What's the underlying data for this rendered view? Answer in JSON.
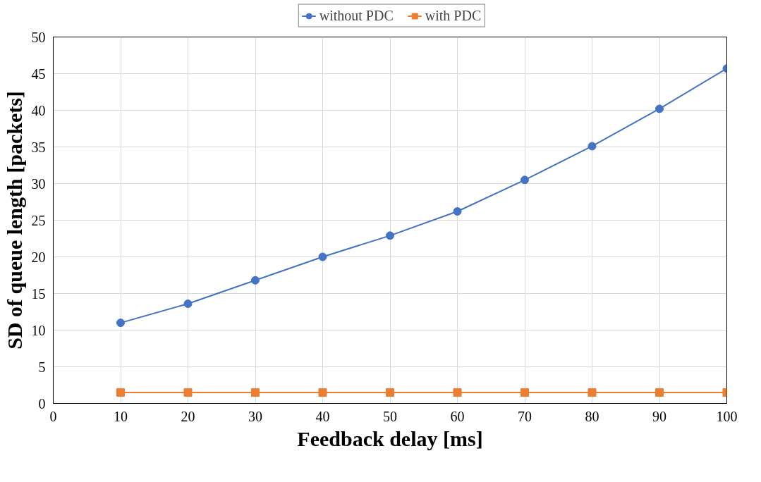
{
  "chart_data": {
    "type": "line",
    "xlabel": "Feedback delay [ms]",
    "ylabel": "SD of queue length [packets]",
    "x": [
      10,
      20,
      30,
      40,
      50,
      60,
      70,
      80,
      90,
      100
    ],
    "series": [
      {
        "name": "without PDC",
        "color": "#4472c4",
        "marker": "circle",
        "values": [
          11.0,
          13.6,
          16.8,
          20.0,
          22.9,
          26.2,
          30.5,
          35.1,
          40.2,
          45.7
        ]
      },
      {
        "name": "with PDC",
        "color": "#ed7d31",
        "marker": "square",
        "values": [
          1.5,
          1.5,
          1.5,
          1.5,
          1.5,
          1.5,
          1.5,
          1.5,
          1.5,
          1.5
        ]
      }
    ],
    "xlim": [
      0,
      100
    ],
    "xticks": [
      0,
      10,
      20,
      30,
      40,
      50,
      60,
      70,
      80,
      90,
      100
    ],
    "ylim": [
      0,
      50
    ],
    "yticks": [
      0,
      5,
      10,
      15,
      20,
      25,
      30,
      35,
      40,
      45,
      50
    ],
    "grid": true,
    "legend": "top",
    "line_style": "solid"
  }
}
